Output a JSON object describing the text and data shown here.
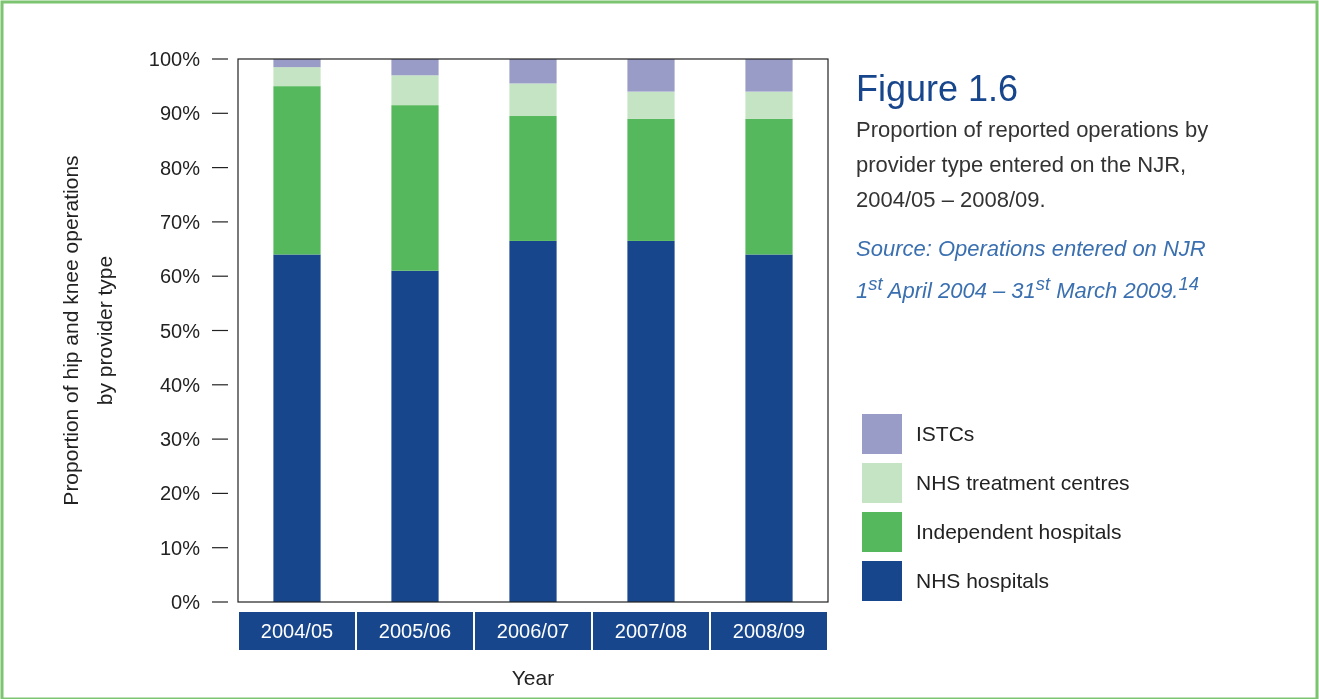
{
  "chart_data": {
    "type": "bar",
    "stacked": true,
    "title": "Figure 1.6",
    "subtitle": "Proportion of reported operations by provider type entered on the NJR, 2004/05 – 2008/09.",
    "annotations": [
      "Source: Operations entered on NJR 1$^{st}$ April 2004 – 31$^{st}$ March 2009.$^{14}$"
    ],
    "xlabel": "Year",
    "ylabel": "Proportion of hip and knee operations by provider type",
    "categories": [
      "2004/05",
      "2005/06",
      "2006/07",
      "2007/08",
      "2008/09"
    ],
    "series": [
      {
        "name": "NHS hospitals",
        "color": "#17468c",
        "values": [
          64,
          61,
          66.5,
          66.5,
          64
        ]
      },
      {
        "name": "Independent hospitals",
        "color": "#55b85c",
        "values": [
          31,
          30.5,
          23,
          22.5,
          25
        ]
      },
      {
        "name": "NHS treatment centres",
        "color": "#c5e4c3",
        "values": [
          3.5,
          5.5,
          6,
          5,
          5
        ]
      },
      {
        "name": "ISTCs",
        "color": "#9a9cc8",
        "values": [
          1.5,
          3,
          4.5,
          6,
          6
        ]
      }
    ],
    "ylim": [
      0,
      100
    ],
    "yticks": [
      {
        "value": 0,
        "label": "0%"
      },
      {
        "value": 10,
        "label": "10%"
      },
      {
        "value": 20,
        "label": "20%"
      },
      {
        "value": 30,
        "label": "30%"
      },
      {
        "value": 40,
        "label": "40%"
      },
      {
        "value": 50,
        "label": "50%"
      },
      {
        "value": 60,
        "label": "60%"
      },
      {
        "value": 70,
        "label": "70%"
      },
      {
        "value": 80,
        "label": "80%"
      },
      {
        "value": 90,
        "label": "90%"
      },
      {
        "value": 100,
        "label": "100%"
      }
    ],
    "grid": false,
    "legend": "right"
  }
}
